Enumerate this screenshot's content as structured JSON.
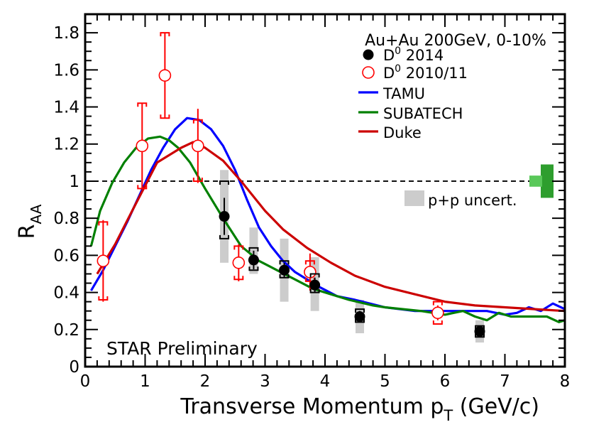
{
  "chart_data": {
    "type": "scatter",
    "title": "Au+Au 200GeV, 0-10%",
    "xlabel": "Transverse Momentum p",
    "xlabel_sub": "T",
    "xlabel_unit": " (GeV/c)",
    "ylabel": "R",
    "ylabel_sub": "AA",
    "xlim": [
      0,
      8
    ],
    "ylim": [
      0,
      1.9
    ],
    "x_ticks": [
      0,
      1,
      2,
      3,
      4,
      5,
      6,
      7,
      8
    ],
    "x_tick_labels": [
      "0",
      "1",
      "2",
      "3",
      "4",
      "5",
      "6",
      "7",
      "8"
    ],
    "y_ticks": [
      0,
      0.2,
      0.4,
      0.6,
      0.8,
      1,
      1.2,
      1.4,
      1.6,
      1.8
    ],
    "y_tick_labels": [
      "0",
      "0.2",
      "0.4",
      "0.6",
      "0.8",
      "1",
      "1.2",
      "1.4",
      "1.6",
      "1.8"
    ],
    "reference_line": 1,
    "annotation": "STAR Preliminary",
    "legend": [
      {
        "label": "D",
        "sup": "0",
        "suffix": " 2014",
        "marker": "filled-circle",
        "color": "#000000"
      },
      {
        "label": "D",
        "sup": "0",
        "suffix": " 2010/11",
        "marker": "open-circle",
        "color": "#ff0000"
      },
      {
        "label": "TAMU",
        "marker": "line",
        "color": "#0000ff"
      },
      {
        "label": "SUBATECH",
        "marker": "line",
        "color": "#008000"
      },
      {
        "label": "Duke",
        "marker": "line",
        "color": "#cc0000"
      }
    ],
    "ppuncert_label": "p+p uncert.",
    "ppuncert_color": "#cccccc",
    "norm_box_dark": {
      "ymin": 0.91,
      "ymax": 1.09,
      "color": "#2e9e2e"
    },
    "norm_box_light": {
      "ymin": 0.97,
      "ymax": 1.03,
      "color": "#5ac85a"
    },
    "series": [
      {
        "name": "D0 2014",
        "color": "#000000",
        "marker": "filled-circle",
        "points": [
          {
            "x": 2.32,
            "y": 0.81,
            "err": 0.1,
            "sys_lo": 0.69,
            "sys_hi": 1.0,
            "pp_lo": 0.56,
            "pp_hi": 1.06
          },
          {
            "x": 2.81,
            "y": 0.575,
            "err": 0.05,
            "sys_lo": 0.52,
            "sys_hi": 0.64,
            "pp_lo": 0.5,
            "pp_hi": 0.75
          },
          {
            "x": 3.32,
            "y": 0.52,
            "err": 0.04,
            "sys_lo": 0.48,
            "sys_hi": 0.57,
            "pp_lo": 0.35,
            "pp_hi": 0.69
          },
          {
            "x": 3.83,
            "y": 0.44,
            "err": 0.04,
            "sys_lo": 0.4,
            "sys_hi": 0.5,
            "pp_lo": 0.3,
            "pp_hi": 0.59
          },
          {
            "x": 4.58,
            "y": 0.27,
            "err": 0.03,
            "sys_lo": 0.24,
            "sys_hi": 0.31,
            "pp_lo": 0.18,
            "pp_hi": 0.36
          },
          {
            "x": 6.58,
            "y": 0.19,
            "err": 0.03,
            "sys_lo": 0.16,
            "sys_hi": 0.22,
            "pp_lo": 0.13,
            "pp_hi": 0.25
          }
        ]
      },
      {
        "name": "D0 2010/11",
        "color": "#ff0000",
        "marker": "open-circle",
        "points": [
          {
            "x": 0.3,
            "y": 0.57,
            "err_lo": 0.22,
            "err_hi": 0.22,
            "sys_lo": 0.36,
            "sys_hi": 0.78
          },
          {
            "x": 0.95,
            "y": 1.19,
            "err_lo": 0.23,
            "err_hi": 0.23,
            "sys_lo": 0.96,
            "sys_hi": 1.42
          },
          {
            "x": 1.33,
            "y": 1.57,
            "err_lo": 0.23,
            "err_hi": 0.23,
            "sys_lo": 1.34,
            "sys_hi": 1.8
          },
          {
            "x": 1.88,
            "y": 1.19,
            "err_lo": 0.2,
            "err_hi": 0.2,
            "sys_lo": 1.0,
            "sys_hi": 1.33
          },
          {
            "x": 2.56,
            "y": 0.56,
            "err_lo": 0.1,
            "err_hi": 0.1,
            "sys_lo": 0.47,
            "sys_hi": 0.65
          },
          {
            "x": 3.75,
            "y": 0.51,
            "err_lo": 0.1,
            "err_hi": 0.1,
            "sys_lo": 0.46,
            "sys_hi": 0.57
          },
          {
            "x": 5.88,
            "y": 0.29,
            "err_lo": 0.04,
            "err_hi": 0.04,
            "sys_lo": 0.23,
            "sys_hi": 0.35
          }
        ]
      }
    ],
    "curves": [
      {
        "name": "TAMU",
        "color": "#0000ff",
        "x": [
          0.1,
          0.3,
          0.5,
          0.7,
          0.9,
          1.1,
          1.3,
          1.5,
          1.7,
          1.9,
          2.1,
          2.3,
          2.5,
          2.7,
          2.9,
          3.1,
          3.3,
          3.5,
          3.7,
          3.9,
          4.2,
          4.5,
          5.0,
          5.5,
          6.0,
          6.3,
          6.7,
          7.0,
          7.2,
          7.4,
          7.6,
          7.8,
          8.0
        ],
        "y": [
          0.41,
          0.52,
          0.65,
          0.78,
          0.92,
          1.06,
          1.18,
          1.28,
          1.34,
          1.33,
          1.28,
          1.19,
          1.06,
          0.9,
          0.75,
          0.65,
          0.57,
          0.51,
          0.47,
          0.43,
          0.38,
          0.36,
          0.32,
          0.3,
          0.3,
          0.3,
          0.3,
          0.28,
          0.29,
          0.32,
          0.3,
          0.34,
          0.31
        ]
      },
      {
        "name": "SUBATECH",
        "color": "#008000",
        "x": [
          0.1,
          0.25,
          0.45,
          0.65,
          0.85,
          1.05,
          1.25,
          1.4,
          1.55,
          1.75,
          2.0,
          2.3,
          2.6,
          2.9,
          3.2,
          3.5,
          3.8,
          4.1,
          4.4,
          4.8,
          5.0,
          5.3,
          5.6,
          6.0,
          6.3,
          6.5,
          6.7,
          6.9,
          7.1,
          7.4,
          7.7,
          7.9,
          8.0
        ],
        "y": [
          0.65,
          0.84,
          0.99,
          1.1,
          1.18,
          1.23,
          1.24,
          1.22,
          1.18,
          1.1,
          0.96,
          0.8,
          0.65,
          0.57,
          0.52,
          0.47,
          0.42,
          0.39,
          0.36,
          0.33,
          0.32,
          0.31,
          0.3,
          0.28,
          0.3,
          0.27,
          0.25,
          0.29,
          0.27,
          0.27,
          0.27,
          0.24,
          0.25
        ]
      },
      {
        "name": "Duke",
        "color": "#cc0000",
        "x": [
          0.2,
          0.5,
          0.8,
          1.2,
          1.6,
          1.8,
          2.0,
          2.3,
          2.6,
          3.0,
          3.3,
          3.7,
          4.1,
          4.5,
          5.0,
          5.5,
          6.0,
          6.5,
          7.0,
          7.5,
          8.0
        ],
        "y": [
          0.5,
          0.66,
          0.85,
          1.1,
          1.18,
          1.21,
          1.18,
          1.11,
          1.0,
          0.84,
          0.74,
          0.64,
          0.56,
          0.49,
          0.43,
          0.39,
          0.35,
          0.33,
          0.32,
          0.31,
          0.3
        ]
      }
    ]
  }
}
